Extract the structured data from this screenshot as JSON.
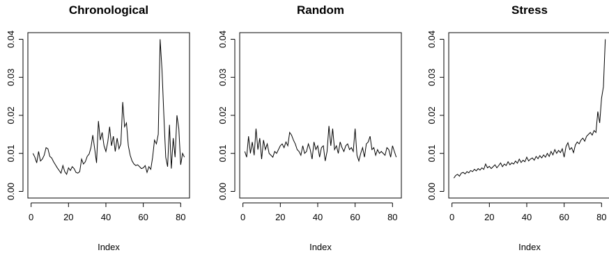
{
  "chart_data": [
    {
      "type": "line",
      "title": "Chronological",
      "xlabel": "Index",
      "ylabel": "",
      "xlim": [
        0,
        83
      ],
      "ylim": [
        0,
        0.04
      ],
      "xticks": [
        "0",
        "20",
        "40",
        "60",
        "80"
      ],
      "yticks": [
        "0.00",
        "0.01",
        "0.02",
        "0.03",
        "0.04"
      ],
      "grid": false,
      "series": [
        {
          "x": [
            1,
            2,
            3,
            4,
            5,
            6,
            7,
            8,
            9,
            10,
            11,
            12,
            13,
            14,
            15,
            16,
            17,
            18,
            19,
            20,
            21,
            22,
            23,
            24,
            25,
            26,
            27,
            28,
            29,
            30,
            31,
            32,
            33,
            34,
            35,
            36,
            37,
            38,
            39,
            40,
            41,
            42,
            43,
            44,
            45,
            46,
            47,
            48,
            49,
            50,
            51,
            52,
            53,
            54,
            55,
            56,
            57,
            58,
            59,
            60,
            61,
            62,
            63,
            64,
            65,
            66,
            67,
            68,
            69,
            70,
            71,
            72,
            73,
            74,
            75,
            76,
            77,
            78,
            79,
            80,
            81,
            82
          ],
          "values": [
            0.01,
            0.009,
            0.0075,
            0.0105,
            0.008,
            0.0085,
            0.0095,
            0.0115,
            0.0112,
            0.0092,
            0.0088,
            0.0078,
            0.007,
            0.0062,
            0.0055,
            0.0048,
            0.0068,
            0.0052,
            0.0045,
            0.0062,
            0.0055,
            0.0065,
            0.006,
            0.005,
            0.0048,
            0.0052,
            0.0085,
            0.0072,
            0.0078,
            0.0092,
            0.0098,
            0.0115,
            0.0148,
            0.0112,
            0.0075,
            0.0185,
            0.0135,
            0.0155,
            0.012,
            0.0105,
            0.013,
            0.017,
            0.012,
            0.0145,
            0.0105,
            0.014,
            0.0112,
            0.0125,
            0.0235,
            0.017,
            0.018,
            0.012,
            0.0095,
            0.008,
            0.0072,
            0.0068,
            0.007,
            0.0065,
            0.006,
            0.0062,
            0.0068,
            0.005,
            0.0065,
            0.0058,
            0.009,
            0.0135,
            0.0125,
            0.015,
            0.04,
            0.032,
            0.02,
            0.009,
            0.0065,
            0.0175,
            0.006,
            0.014,
            0.009,
            0.02,
            0.0165,
            0.007,
            0.01,
            0.009
          ]
        }
      ]
    },
    {
      "type": "line",
      "title": "Random",
      "xlabel": "Index",
      "ylabel": "",
      "xlim": [
        0,
        83
      ],
      "ylim": [
        0,
        0.04
      ],
      "xticks": [
        "0",
        "20",
        "40",
        "60",
        "80"
      ],
      "yticks": [
        "0.00",
        "0.01",
        "0.02",
        "0.03",
        "0.04"
      ],
      "grid": false,
      "series": [
        {
          "x": [
            1,
            2,
            3,
            4,
            5,
            6,
            7,
            8,
            9,
            10,
            11,
            12,
            13,
            14,
            15,
            16,
            17,
            18,
            19,
            20,
            21,
            22,
            23,
            24,
            25,
            26,
            27,
            28,
            29,
            30,
            31,
            32,
            33,
            34,
            35,
            36,
            37,
            38,
            39,
            40,
            41,
            42,
            43,
            44,
            45,
            46,
            47,
            48,
            49,
            50,
            51,
            52,
            53,
            54,
            55,
            56,
            57,
            58,
            59,
            60,
            61,
            62,
            63,
            64,
            65,
            66,
            67,
            68,
            69,
            70,
            71,
            72,
            73,
            74,
            75,
            76,
            77,
            78,
            79,
            80,
            81,
            82
          ],
          "values": [
            0.0105,
            0.009,
            0.0145,
            0.01,
            0.013,
            0.0095,
            0.0165,
            0.011,
            0.014,
            0.0085,
            0.0135,
            0.011,
            0.0125,
            0.01,
            0.0095,
            0.009,
            0.0105,
            0.01,
            0.011,
            0.012,
            0.0125,
            0.0115,
            0.013,
            0.012,
            0.0155,
            0.0148,
            0.0135,
            0.0125,
            0.011,
            0.0105,
            0.0095,
            0.012,
            0.01,
            0.0105,
            0.0125,
            0.011,
            0.0085,
            0.013,
            0.011,
            0.012,
            0.009,
            0.0115,
            0.012,
            0.008,
            0.0105,
            0.0172,
            0.012,
            0.0165,
            0.011,
            0.012,
            0.01,
            0.013,
            0.0115,
            0.0105,
            0.012,
            0.0125,
            0.011,
            0.0115,
            0.0105,
            0.0165,
            0.0095,
            0.008,
            0.01,
            0.0115,
            0.009,
            0.0125,
            0.013,
            0.0145,
            0.011,
            0.0115,
            0.0095,
            0.011,
            0.01,
            0.0105,
            0.01,
            0.0095,
            0.0115,
            0.011,
            0.009,
            0.012,
            0.0105,
            0.009
          ]
        }
      ]
    },
    {
      "type": "line",
      "title": "Stress",
      "xlabel": "Index",
      "ylabel": "",
      "xlim": [
        0,
        83
      ],
      "ylim": [
        0,
        0.04
      ],
      "xticks": [
        "0",
        "20",
        "40",
        "60",
        "80"
      ],
      "yticks": [
        "0.00",
        "0.01",
        "0.02",
        "0.03",
        "0.04"
      ],
      "grid": false,
      "series": [
        {
          "x": [
            1,
            2,
            3,
            4,
            5,
            6,
            7,
            8,
            9,
            10,
            11,
            12,
            13,
            14,
            15,
            16,
            17,
            18,
            19,
            20,
            21,
            22,
            23,
            24,
            25,
            26,
            27,
            28,
            29,
            30,
            31,
            32,
            33,
            34,
            35,
            36,
            37,
            38,
            39,
            40,
            41,
            42,
            43,
            44,
            45,
            46,
            47,
            48,
            49,
            50,
            51,
            52,
            53,
            54,
            55,
            56,
            57,
            58,
            59,
            60,
            61,
            62,
            63,
            64,
            65,
            66,
            67,
            68,
            69,
            70,
            71,
            72,
            73,
            74,
            75,
            76,
            77,
            78,
            79,
            80,
            81,
            82
          ],
          "values": [
            0.0035,
            0.0042,
            0.0045,
            0.004,
            0.0048,
            0.005,
            0.0046,
            0.0052,
            0.0049,
            0.0055,
            0.0052,
            0.0058,
            0.0054,
            0.006,
            0.0056,
            0.0062,
            0.0058,
            0.0072,
            0.0062,
            0.0066,
            0.006,
            0.0065,
            0.007,
            0.0062,
            0.0068,
            0.0075,
            0.0065,
            0.0072,
            0.0068,
            0.0078,
            0.007,
            0.0075,
            0.0072,
            0.008,
            0.0074,
            0.0085,
            0.0076,
            0.0082,
            0.0078,
            0.009,
            0.008,
            0.0085,
            0.0088,
            0.0082,
            0.0092,
            0.0086,
            0.0094,
            0.0088,
            0.0096,
            0.009,
            0.01,
            0.0092,
            0.0105,
            0.0096,
            0.011,
            0.01,
            0.0108,
            0.0102,
            0.0112,
            0.009,
            0.0118,
            0.0128,
            0.011,
            0.0115,
            0.0102,
            0.0122,
            0.013,
            0.0125,
            0.0135,
            0.014,
            0.0132,
            0.0145,
            0.015,
            0.0155,
            0.0148,
            0.016,
            0.0155,
            0.021,
            0.018,
            0.0245,
            0.0275,
            0.04
          ]
        }
      ]
    }
  ]
}
